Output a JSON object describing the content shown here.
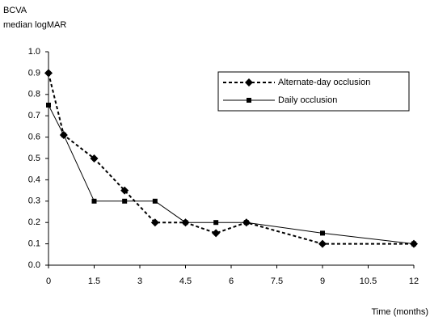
{
  "chart_data": {
    "type": "line",
    "y_label": [
      "BCVA",
      "median logMAR"
    ],
    "x_label": "Time (months)",
    "x": [
      0,
      0.5,
      1.5,
      2.5,
      3.5,
      4.5,
      5.5,
      6.5,
      9,
      12
    ],
    "series": [
      {
        "name": "Alternate-day occlusion",
        "color": "#000000",
        "dash": true,
        "marker": "diamond",
        "values": [
          0.9,
          0.61,
          0.5,
          0.35,
          0.2,
          0.2,
          0.15,
          0.2,
          0.1,
          0.1
        ]
      },
      {
        "name": "Daily occlusion",
        "color": "#000000",
        "dash": false,
        "marker": "square",
        "values": [
          0.75,
          0.61,
          0.3,
          0.3,
          0.3,
          0.2,
          0.2,
          0.2,
          0.15,
          0.1
        ]
      }
    ],
    "xlim": [
      0,
      12
    ],
    "xticks": [
      0,
      1.5,
      3,
      4.5,
      6,
      7.5,
      9,
      10.5,
      12
    ],
    "ylim": [
      0,
      1
    ],
    "yticks": [
      {
        "value": 0,
        "label": "0.0"
      },
      0.1,
      0.2,
      0.3,
      0.4,
      0.5,
      0.6,
      0.7,
      0.8,
      0.9,
      {
        "value": 1,
        "label": "1.0"
      }
    ],
    "grid": false,
    "legend": "upper right"
  }
}
